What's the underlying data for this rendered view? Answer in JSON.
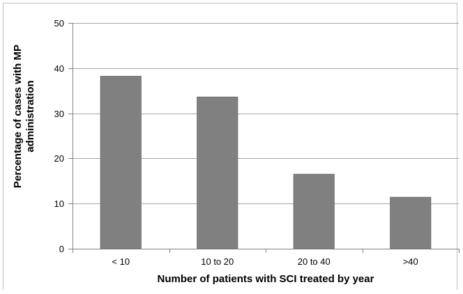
{
  "chart_data": {
    "type": "bar",
    "categories": [
      "< 10",
      "10 to 20",
      "20 to 40",
      ">40"
    ],
    "values": [
      38.2,
      33.6,
      16.5,
      11.4
    ],
    "xlabel": "Number of patients with SCI treated by year",
    "ylabel": [
      "Percentage of cases with MP",
      "administration"
    ],
    "ylim": [
      0,
      50
    ],
    "yticks": [
      0,
      10,
      20,
      30,
      40,
      50
    ],
    "grid": true,
    "bar_color": "#808080"
  }
}
